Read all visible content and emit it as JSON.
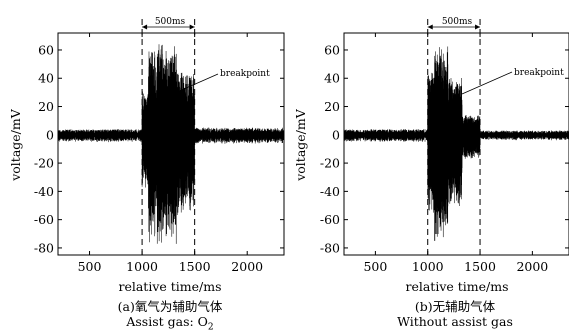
{
  "figure": {
    "panels": [
      {
        "caption_line1": "(a)氧气为辅助气体",
        "caption_line2": "Assist gas: O",
        "caption_sub": "2"
      },
      {
        "caption_line1": "(b)无辅助气体",
        "caption_line2": "Without assist gas",
        "caption_sub": ""
      }
    ]
  },
  "chart_data": [
    {
      "type": "line",
      "xlabel": "relative time/ms",
      "ylabel": "voltage/mV",
      "xlim": [
        200,
        2350
      ],
      "ylim": [
        -85,
        72
      ],
      "x_ticks": [
        500,
        1000,
        1500,
        2000
      ],
      "y_ticks": [
        -80,
        -60,
        -40,
        -20,
        0,
        20,
        40,
        60
      ],
      "markers": {
        "x": [
          1000,
          1500
        ],
        "span_label": "500ms"
      },
      "annotation": {
        "text": "breakpoint",
        "x": 1240,
        "y": 42
      },
      "series": [
        {
          "segments": [
            {
              "x_start": 200,
              "x_end": 1000,
              "amplitude_mV": 4
            },
            {
              "x_start": 1000,
              "x_end": 1060,
              "amplitude_mV": 30
            },
            {
              "x_start": 1060,
              "x_end": 1200,
              "amplitude_mV": 63
            },
            {
              "x_start": 1200,
              "x_end": 1330,
              "amplitude_mV": 60
            },
            {
              "x_start": 1330,
              "x_end": 1500,
              "amplitude_mV": 45
            },
            {
              "x_start": 1500,
              "x_end": 2350,
              "amplitude_mV": 5
            }
          ],
          "peak_max_mV": 64,
          "peak_min_mV": -83,
          "color": "#000000"
        }
      ]
    },
    {
      "type": "line",
      "xlabel": "relative time/ms",
      "ylabel": "voltage/mV",
      "xlim": [
        200,
        2350
      ],
      "ylim": [
        -85,
        72
      ],
      "x_ticks": [
        500,
        1000,
        1500,
        2000
      ],
      "y_ticks": [
        -80,
        -60,
        -40,
        -20,
        0,
        20,
        40,
        60
      ],
      "markers": {
        "x": [
          1000,
          1500
        ],
        "span_label": "500ms"
      },
      "annotation": {
        "text": "breakpoint",
        "x": 1300,
        "y": 30
      },
      "series": [
        {
          "segments": [
            {
              "x_start": 200,
              "x_end": 1000,
              "amplitude_mV": 4
            },
            {
              "x_start": 1000,
              "x_end": 1060,
              "amplitude_mV": 45
            },
            {
              "x_start": 1060,
              "x_end": 1200,
              "amplitude_mV": 60
            },
            {
              "x_start": 1200,
              "x_end": 1330,
              "amplitude_mV": 40
            },
            {
              "x_start": 1330,
              "x_end": 1500,
              "amplitude_mV": 14
            },
            {
              "x_start": 1500,
              "x_end": 2350,
              "amplitude_mV": 3
            }
          ],
          "peak_max_mV": 63,
          "peak_min_mV": -75,
          "color": "#000000"
        }
      ]
    }
  ]
}
